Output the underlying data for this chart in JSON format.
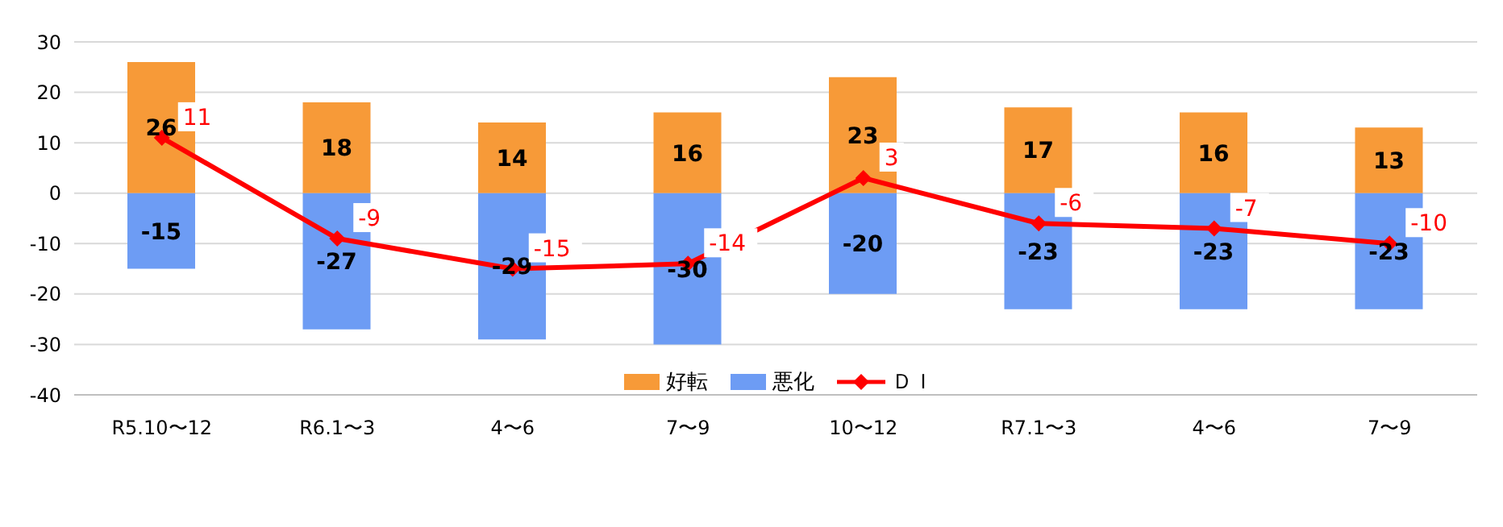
{
  "chart_data": {
    "type": "bar",
    "categories": [
      "R5.10〜12",
      "R6.1〜3",
      "4〜6",
      "7〜9",
      "10〜12",
      "R7.1〜3",
      "4〜6",
      "7〜9"
    ],
    "series": [
      {
        "name": "好転",
        "color": "#f79a38",
        "values": [
          26,
          18,
          14,
          16,
          23,
          17,
          16,
          13
        ]
      },
      {
        "name": "悪化",
        "color": "#6d9cf4",
        "values": [
          -15,
          -27,
          -29,
          -30,
          -20,
          -23,
          -23,
          -23
        ]
      },
      {
        "name": "ＤＩ",
        "type": "line",
        "color": "#ff0000",
        "marker": "diamond",
        "values": [
          11,
          -9,
          -15,
          -14,
          3,
          -6,
          -7,
          -10
        ]
      }
    ],
    "stacked": true,
    "ylim": [
      -40,
      30
    ],
    "yticks": [
      -40,
      -30,
      -20,
      -10,
      0,
      10,
      20,
      30
    ],
    "grid": "y",
    "legend": "bottom",
    "data_labels": true
  }
}
